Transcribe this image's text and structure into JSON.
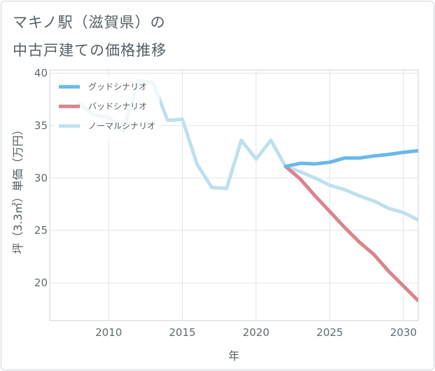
{
  "title": {
    "line1": "マキノ駅（滋賀県）の",
    "line2": "中古戸建ての価格推移"
  },
  "chart_data": {
    "type": "line",
    "xlabel": "年",
    "ylabel": "坪（3.3㎡）単価（万円）",
    "xlim": [
      2006,
      2031
    ],
    "ylim": [
      16.4,
      40.3
    ],
    "xticks": [
      2010,
      2015,
      2020,
      2025,
      2030
    ],
    "yticks": [
      20,
      25,
      30,
      35,
      40
    ],
    "grid": true,
    "legend_position": "top-left",
    "series": [
      {
        "name": "グッドシナリオ",
        "color": "#6bb8ea",
        "x": [
          2022,
          2023,
          2024,
          2025,
          2026,
          2027,
          2028,
          2029,
          2030,
          2031
        ],
        "y": [
          31.1,
          31.4,
          31.35,
          31.5,
          31.9,
          31.9,
          32.1,
          32.25,
          32.45,
          32.6
        ]
      },
      {
        "name": "バッドシナリオ",
        "color": "#d9848b",
        "x": [
          2022,
          2023,
          2024,
          2025,
          2026,
          2027,
          2028,
          2029,
          2030,
          2031
        ],
        "y": [
          31.1,
          29.9,
          28.3,
          26.8,
          25.3,
          23.9,
          22.7,
          21.1,
          19.7,
          18.3
        ]
      },
      {
        "name": "ノーマルシナリオ",
        "color": "#bfe0ee",
        "x": [
          2008,
          2009,
          2010,
          2011,
          2012,
          2013,
          2014,
          2015,
          2016,
          2017,
          2018,
          2019,
          2020,
          2021,
          2022,
          2023,
          2024,
          2025,
          2026,
          2027,
          2028,
          2029,
          2030,
          2031
        ],
        "y": [
          37.1,
          36.0,
          35.8,
          34.5,
          39.3,
          39.1,
          35.5,
          35.6,
          31.3,
          29.1,
          29.0,
          33.6,
          31.8,
          33.6,
          31.1,
          30.6,
          30.0,
          29.3,
          28.9,
          28.3,
          27.8,
          27.1,
          26.7,
          26.0
        ]
      }
    ]
  }
}
